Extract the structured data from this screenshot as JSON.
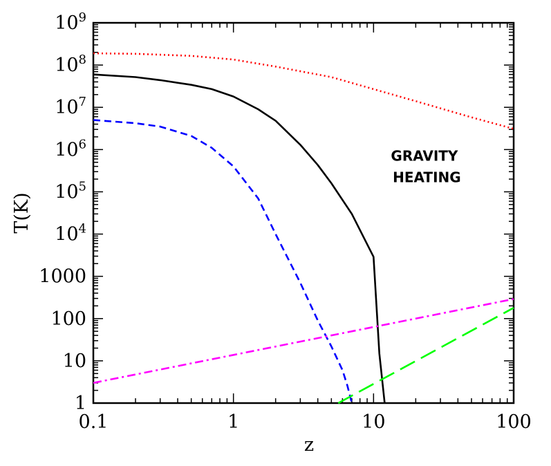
{
  "chart_data": {
    "type": "line",
    "title": "",
    "xlabel": "z",
    "ylabel": "T(K)",
    "xscale": "log",
    "yscale": "log",
    "xlim": [
      0.1,
      100
    ],
    "ylim": [
      1,
      1000000000
    ],
    "grid": false,
    "x_tick_labels": [
      {
        "value": 0.1,
        "label": "0.1"
      },
      {
        "value": 1,
        "label": "1"
      },
      {
        "value": 10,
        "label": "10"
      },
      {
        "value": 100,
        "label": "100"
      }
    ],
    "y_tick_labels": [
      {
        "value": 1,
        "base": "1",
        "exp": ""
      },
      {
        "value": 10,
        "base": "10",
        "exp": ""
      },
      {
        "value": 100,
        "base": "100",
        "exp": ""
      },
      {
        "value": 1000,
        "base": "1000",
        "exp": ""
      },
      {
        "value": 10000,
        "base": "10",
        "exp": "4"
      },
      {
        "value": 100000,
        "base": "10",
        "exp": "5"
      },
      {
        "value": 1000000,
        "base": "10",
        "exp": "6"
      },
      {
        "value": 10000000,
        "base": "10",
        "exp": "7"
      },
      {
        "value": 100000000,
        "base": "10",
        "exp": "8"
      },
      {
        "value": 1000000000,
        "base": "10",
        "exp": "9"
      }
    ],
    "annotations": [
      {
        "lines": [
          "GRAVITY",
          "HEATING"
        ],
        "x": 24,
        "y": 400000
      }
    ],
    "series": [
      {
        "color": "#ff0000",
        "dash": "dotted",
        "x": [
          0.1,
          0.2,
          0.5,
          1,
          2,
          5,
          10,
          20,
          50,
          100
        ],
        "y": [
          190000000,
          185000000,
          165000000,
          135000000,
          92000000,
          52000000,
          27000000,
          14000000,
          5800000,
          3100000
        ]
      },
      {
        "color": "#000000",
        "dash": "solid",
        "x": [
          0.1,
          0.2,
          0.3,
          0.5,
          0.7,
          1,
          1.5,
          2,
          3,
          4,
          5,
          7,
          10,
          11,
          12
        ],
        "y": [
          60000000,
          52000000,
          44000000,
          34000000,
          27000000,
          18000000,
          9000000,
          4800000,
          1300000,
          430000,
          160000,
          30000,
          2900,
          15,
          1
        ]
      },
      {
        "color": "#0000ff",
        "dash": "dashed",
        "x": [
          0.1,
          0.2,
          0.3,
          0.5,
          0.7,
          1,
          1.5,
          2,
          3,
          4,
          5,
          6,
          6.5,
          7
        ],
        "y": [
          5000000,
          4200000,
          3500000,
          2100000,
          1100000,
          400000,
          70000,
          10000,
          700,
          90,
          22,
          6,
          2.6,
          1
        ]
      },
      {
        "color": "#ff00ff",
        "dash": "dashdot",
        "x": [
          0.1,
          100
        ],
        "y": [
          3,
          290
        ]
      },
      {
        "color": "#00ff00",
        "dash": "longdash",
        "x": [
          5.6,
          100
        ],
        "y": [
          1,
          180
        ]
      }
    ]
  }
}
